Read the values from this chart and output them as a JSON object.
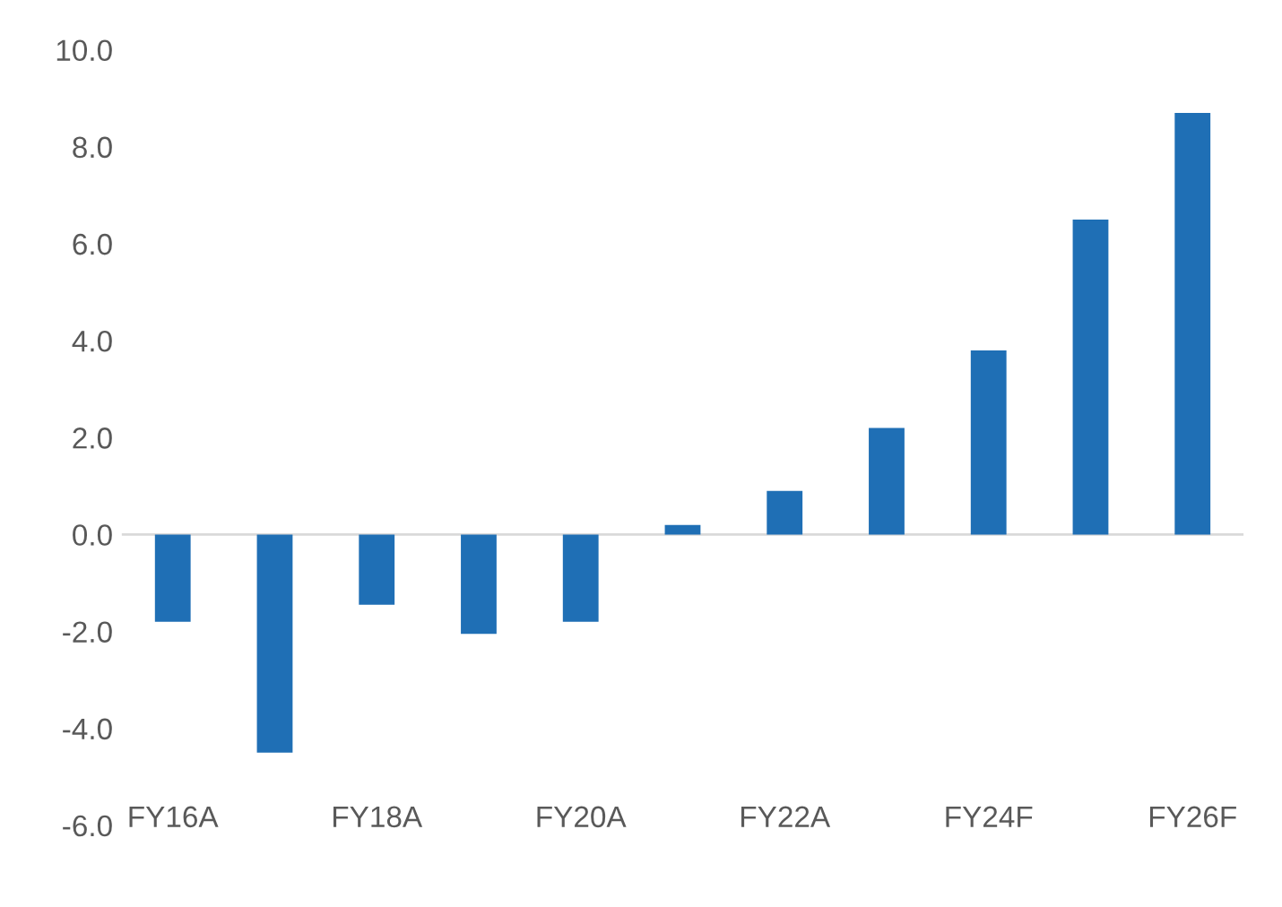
{
  "chart_data": {
    "type": "bar",
    "categories": [
      "FY16A",
      null,
      "FY18A",
      null,
      "FY20A",
      null,
      "FY22A",
      null,
      "FY24F",
      null,
      "FY26F"
    ],
    "values": [
      -1.8,
      -4.5,
      -1.45,
      -2.05,
      -1.8,
      0.2,
      0.9,
      2.2,
      3.8,
      6.5,
      8.7
    ],
    "color": "#1f6fb5",
    "ylim": [
      -6,
      10
    ],
    "yticks": [
      {
        "value": -6,
        "label": "-6.0"
      },
      {
        "value": -4,
        "label": "-4.0"
      },
      {
        "value": -2,
        "label": "-2.0"
      },
      {
        "value": 0,
        "label": "0.0"
      },
      {
        "value": 2,
        "label": "2.0"
      },
      {
        "value": 4,
        "label": "4.0"
      },
      {
        "value": 6,
        "label": "6.0"
      },
      {
        "value": 8,
        "label": "8.0"
      },
      {
        "value": 10,
        "label": "10.0"
      }
    ],
    "ref_lines": [
      {
        "axis": "y",
        "value": 0,
        "color": "#d9d9d9"
      }
    ],
    "grid": false,
    "legend": false
  }
}
